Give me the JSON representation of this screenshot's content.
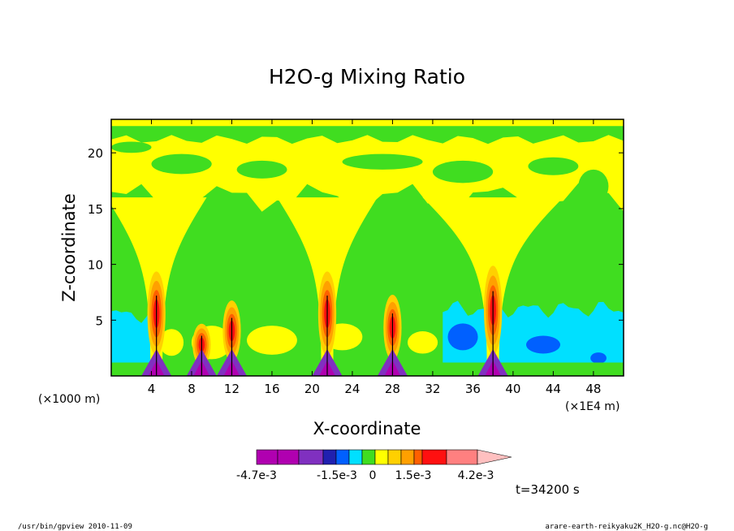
{
  "chart_data": {
    "type": "heatmap",
    "title": "H2O-g Mixing Ratio",
    "xlabel": "X-coordinate",
    "ylabel": "Z-coordinate",
    "x_unit_left": "(×1000 m)",
    "x_unit_right": "(×1E4 m)",
    "xlim": [
      0,
      51
    ],
    "ylim": [
      0,
      23
    ],
    "x_ticks": [
      4,
      8,
      12,
      16,
      20,
      24,
      28,
      32,
      36,
      40,
      44,
      48
    ],
    "y_ticks": [
      5,
      10,
      15,
      20
    ],
    "colorbar": {
      "labels": [
        "-4.7e-3",
        "-1.5e-3",
        "0",
        "1.5e-3",
        "4.2e-3"
      ],
      "colors": [
        "#b000b0",
        "#8030c0",
        "#2020b0",
        "#0060ff",
        "#00e0ff",
        "#40dd20",
        "#ffff00",
        "#ffd000",
        "#ffa000",
        "#ff6000",
        "#ff1010",
        "#ff8080",
        "#ffc0c0"
      ]
    },
    "columns": [
      {
        "x": 4.5,
        "height": 9.0
      },
      {
        "x": 9.0,
        "height": 4.5
      },
      {
        "x": 12.0,
        "height": 6.5
      },
      {
        "x": 21.5,
        "height": 9.0
      },
      {
        "x": 28.0,
        "height": 7.0
      },
      {
        "x": 38.0,
        "height": 9.5
      }
    ],
    "time_label": "t=34200 s"
  },
  "footer": {
    "left": "/usr/bin/gpview  2010-11-09",
    "right": "arare-earth-reikyaku2K_H2O-g.nc@H2O-g"
  }
}
